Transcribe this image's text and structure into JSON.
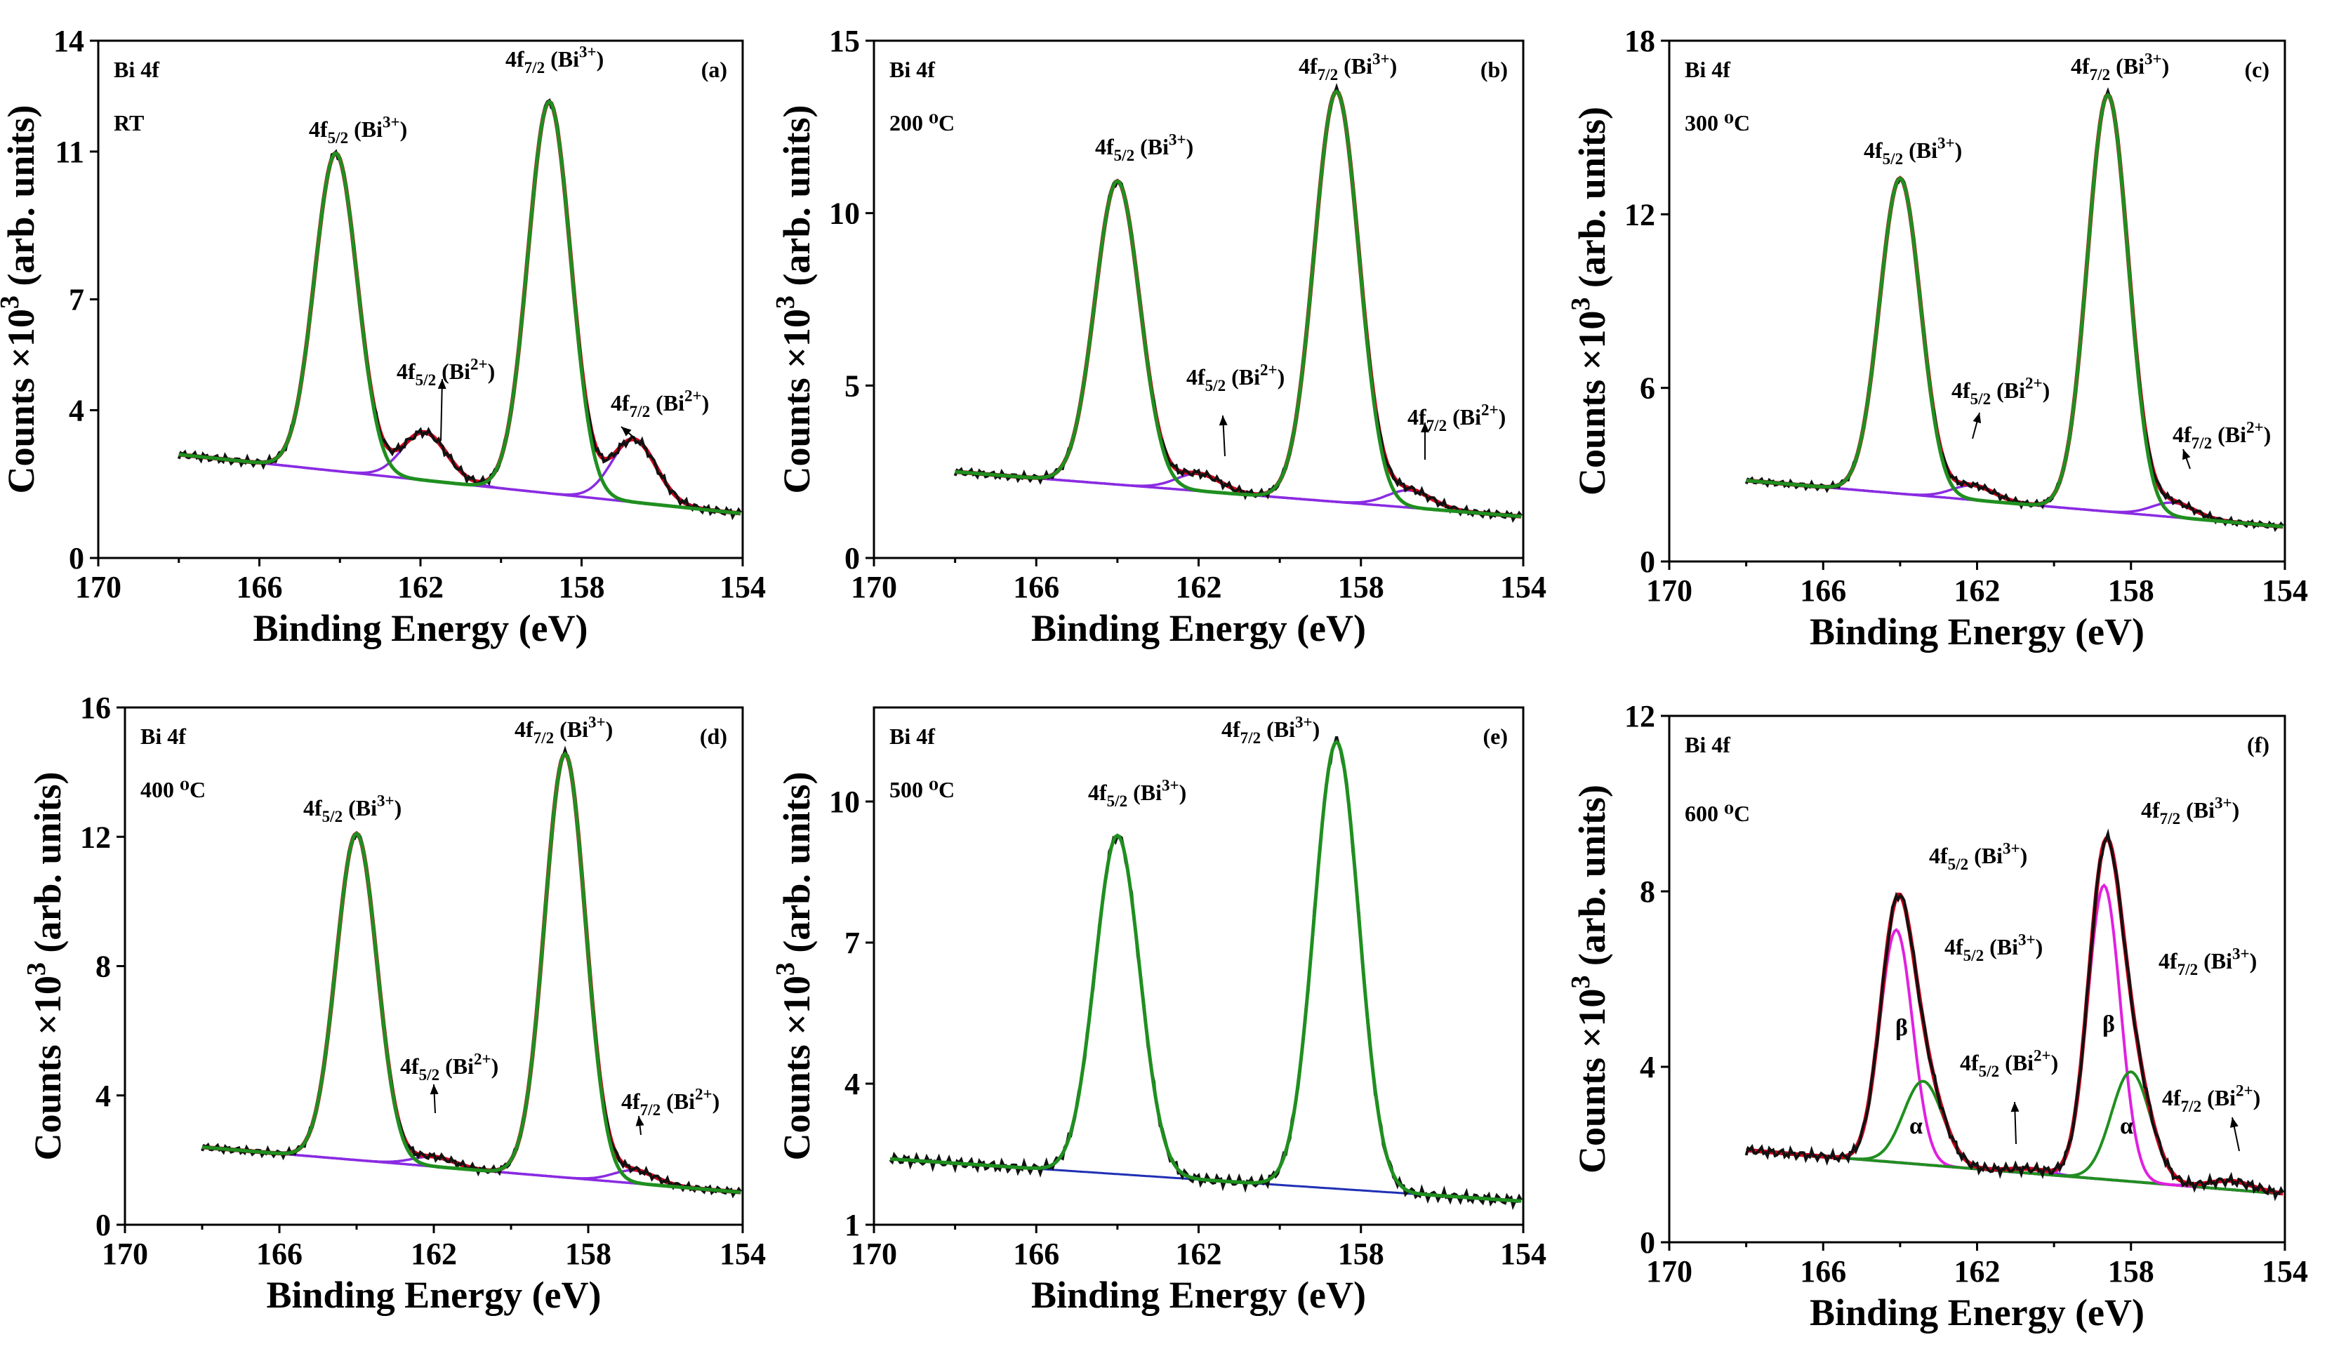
{
  "colors": {
    "exp": "#111111",
    "fit_envelope": "#d0021b",
    "bi3_component": "#1f8f1f",
    "bi2_component": "#8a2be2",
    "baseline": "#1f2fb5",
    "beta_component": "#e020e0",
    "alpha_component": "#1f8f1f"
  },
  "chart_data": [
    {
      "id": "a",
      "panel_label": "(a)",
      "type": "line",
      "element": "Bi 4f",
      "condition": "RT",
      "xlabel": "Binding Energy (eV)",
      "ylabel": "Counts ×10",
      "ylabel_sup": "3",
      "ylabel_suffix": " (arb. units)",
      "xlim": [
        170,
        154
      ],
      "xticks": [
        "170",
        "166",
        "162",
        "158",
        "154"
      ],
      "ylim": [
        0,
        14
      ],
      "yticks": [
        "0",
        "4",
        "7",
        "11",
        "14"
      ],
      "baseline": {
        "left": 2.8,
        "right": 1.2,
        "start": 168
      },
      "peaks": [
        {
          "center": 164.1,
          "height": 8.6,
          "fwhm": 1.25,
          "kind": "bi3"
        },
        {
          "center": 158.8,
          "height": 10.6,
          "fwhm": 1.25,
          "kind": "bi3"
        },
        {
          "center": 161.9,
          "height": 1.3,
          "fwhm": 1.3,
          "kind": "bi2"
        },
        {
          "center": 156.7,
          "height": 1.7,
          "fwhm": 1.3,
          "kind": "bi2"
        }
      ],
      "annotations": [
        {
          "base": "4f",
          "sub": "5/2",
          "rest": " (Bi",
          "sup": "3+",
          "close": ")"
        },
        {
          "base": "4f",
          "sub": "7/2",
          "rest": " (Bi",
          "sup": "3+",
          "close": ")"
        },
        {
          "base": "4f",
          "sub": "5/2",
          "rest": " (Bi",
          "sup": "2+",
          "close": ")"
        },
        {
          "base": "4f",
          "sub": "7/2",
          "rest": " (Bi",
          "sup": "2+",
          "close": ")"
        }
      ]
    },
    {
      "id": "b",
      "panel_label": "(b)",
      "type": "line",
      "element": "Bi 4f",
      "condition": "200 ⁰C",
      "xlabel": "Binding Energy (eV)",
      "ylabel": "Counts ×10",
      "ylabel_sup": "3",
      "ylabel_suffix": " (arb. units)",
      "xlim": [
        170,
        154
      ],
      "xticks": [
        "170",
        "166",
        "162",
        "158",
        "154"
      ],
      "ylim": [
        0,
        15
      ],
      "yticks": [
        "0",
        "5",
        "10",
        "15"
      ],
      "baseline": {
        "left": 2.5,
        "right": 1.2,
        "start": 168
      },
      "peaks": [
        {
          "center": 164.0,
          "height": 8.8,
          "fwhm": 1.3,
          "kind": "bi3"
        },
        {
          "center": 158.6,
          "height": 11.9,
          "fwhm": 1.3,
          "kind": "bi3"
        },
        {
          "center": 162.0,
          "height": 0.5,
          "fwhm": 1.3,
          "kind": "bi2"
        },
        {
          "center": 156.8,
          "height": 0.5,
          "fwhm": 1.3,
          "kind": "bi2"
        }
      ],
      "annotations": [
        {
          "base": "4f",
          "sub": "5/2",
          "rest": " (Bi",
          "sup": "3+",
          "close": ")"
        },
        {
          "base": "4f",
          "sub": "7/2",
          "rest": " (Bi",
          "sup": "3+",
          "close": ")"
        },
        {
          "base": "4f",
          "sub": "5/2",
          "rest": " (Bi",
          "sup": "2+",
          "close": ")"
        },
        {
          "base": "4f",
          "sub": "7/2",
          "rest": " (Bi",
          "sup": "2+",
          "close": ")"
        }
      ]
    },
    {
      "id": "c",
      "panel_label": "(c)",
      "type": "line",
      "element": "Bi 4f",
      "condition": "300 ⁰C",
      "xlabel": "Binding Energy (eV)",
      "ylabel": "Counts ×10",
      "ylabel_sup": "3",
      "ylabel_suffix": " (arb. units)",
      "xlim": [
        170,
        154
      ],
      "xticks": [
        "170",
        "166",
        "162",
        "158",
        "154"
      ],
      "ylim": [
        0,
        18
      ],
      "yticks": [
        "0",
        "6",
        "12",
        "18"
      ],
      "baseline": {
        "left": 2.8,
        "right": 1.2,
        "start": 168
      },
      "peaks": [
        {
          "center": 164.0,
          "height": 10.9,
          "fwhm": 1.25,
          "kind": "bi3"
        },
        {
          "center": 158.6,
          "height": 14.4,
          "fwhm": 1.25,
          "kind": "bi3"
        },
        {
          "center": 162.1,
          "height": 0.5,
          "fwhm": 1.3,
          "kind": "bi2"
        },
        {
          "center": 156.9,
          "height": 0.5,
          "fwhm": 1.3,
          "kind": "bi2"
        }
      ],
      "annotations": [
        {
          "base": "4f",
          "sub": "5/2",
          "rest": " (Bi",
          "sup": "3+",
          "close": ")"
        },
        {
          "base": "4f",
          "sub": "7/2",
          "rest": " (Bi",
          "sup": "3+",
          "close": ")"
        },
        {
          "base": "4f",
          "sub": "5/2",
          "rest": " (Bi",
          "sup": "2+",
          "close": ")"
        },
        {
          "base": "4f",
          "sub": "7/2",
          "rest": " (Bi",
          "sup": "2+",
          "close": ")"
        }
      ]
    },
    {
      "id": "d",
      "panel_label": "(d)",
      "type": "line",
      "element": "Bi 4f",
      "condition": "400 ⁰C",
      "xlabel": "Binding Energy (eV)",
      "ylabel": "Counts ×10",
      "ylabel_sup": "3",
      "ylabel_suffix": " (arb. units)",
      "xlim": [
        170,
        154
      ],
      "xticks": [
        "170",
        "166",
        "162",
        "158",
        "154"
      ],
      "ylim": [
        0,
        16
      ],
      "yticks": [
        "0",
        "4",
        "8",
        "12",
        "16"
      ],
      "baseline": {
        "left": 2.4,
        "right": 1.0,
        "start": 168
      },
      "peaks": [
        {
          "center": 164.0,
          "height": 10.1,
          "fwhm": 1.25,
          "kind": "bi3"
        },
        {
          "center": 158.6,
          "height": 13.1,
          "fwhm": 1.25,
          "kind": "bi3"
        },
        {
          "center": 162.0,
          "height": 0.3,
          "fwhm": 1.3,
          "kind": "bi2"
        },
        {
          "center": 156.8,
          "height": 0.4,
          "fwhm": 1.3,
          "kind": "bi2"
        }
      ],
      "annotations": [
        {
          "base": "4f",
          "sub": "5/2",
          "rest": " (Bi",
          "sup": "3+",
          "close": ")"
        },
        {
          "base": "4f",
          "sub": "7/2",
          "rest": " (Bi",
          "sup": "3+",
          "close": ")"
        },
        {
          "base": "4f",
          "sub": "5/2",
          "rest": " (Bi",
          "sup": "2+",
          "close": ")"
        },
        {
          "base": "4f",
          "sub": "7/2",
          "rest": " (Bi",
          "sup": "2+",
          "close": ")"
        }
      ]
    },
    {
      "id": "e",
      "panel_label": "(e)",
      "type": "line",
      "element": "Bi 4f",
      "condition": "500 ⁰C",
      "xlabel": "Binding Energy (eV)",
      "ylabel": "Counts ×10",
      "ylabel_sup": "3",
      "ylabel_suffix": " (arb. units)",
      "xlim": [
        170,
        154
      ],
      "xticks": [
        "170",
        "166",
        "162",
        "158",
        "154"
      ],
      "ylim": [
        1,
        12
      ],
      "yticks": [
        "1",
        "4",
        "7",
        "10"
      ],
      "baseline": {
        "left": 2.4,
        "right": 1.5,
        "start": 169.6
      },
      "peaks": [
        {
          "center": 164.0,
          "height": 7.2,
          "fwhm": 1.3,
          "kind": "bi3"
        },
        {
          "center": 158.6,
          "height": 9.5,
          "fwhm": 1.3,
          "kind": "bi3"
        }
      ],
      "annotations": [
        {
          "base": "4f",
          "sub": "5/2",
          "rest": " (Bi",
          "sup": "3+",
          "close": ")"
        },
        {
          "base": "4f",
          "sub": "7/2",
          "rest": " (Bi",
          "sup": "3+",
          "close": ")"
        }
      ]
    },
    {
      "id": "f",
      "panel_label": "(f)",
      "type": "line",
      "element": "Bi 4f",
      "condition": "600 ⁰C",
      "xlabel": "Binding Energy (eV)",
      "ylabel": "Counts ×10",
      "ylabel_sup": "3",
      "ylabel_suffix": " (arb. units)",
      "xlim": [
        170,
        154
      ],
      "xticks": [
        "170",
        "166",
        "162",
        "158",
        "154"
      ],
      "ylim": [
        0,
        12
      ],
      "yticks": [
        "0",
        "4",
        "8",
        "12"
      ],
      "baseline": {
        "left": 2.1,
        "right": 1.1,
        "start": 168
      },
      "peaks": [
        {
          "center": 164.1,
          "height": 5.3,
          "fwhm": 1.0,
          "kind": "beta"
        },
        {
          "center": 163.4,
          "height": 1.9,
          "fwhm": 1.2,
          "kind": "alpha"
        },
        {
          "center": 158.7,
          "height": 6.7,
          "fwhm": 1.0,
          "kind": "beta"
        },
        {
          "center": 158.0,
          "height": 2.5,
          "fwhm": 1.2,
          "kind": "alpha"
        },
        {
          "center": 160.6,
          "height": 0.1,
          "fwhm": 1.3,
          "kind": "bi2"
        },
        {
          "center": 155.4,
          "height": 0.2,
          "fwhm": 1.3,
          "kind": "bi2"
        }
      ],
      "annotations": [
        {
          "base": "4f",
          "sub": "5/2",
          "rest": " (Bi",
          "sup": "3+",
          "close": ")"
        },
        {
          "base": "4f",
          "sub": "7/2",
          "rest": " (Bi",
          "sup": "3+",
          "close": ")"
        },
        {
          "base": "4f",
          "sub": "5/2",
          "rest": " (Bi",
          "sup": "3+",
          "close": ")"
        },
        {
          "base": "4f",
          "sub": "7/2",
          "rest": " (Bi",
          "sup": "3+",
          "close": ")"
        },
        {
          "base": "4f",
          "sub": "5/2",
          "rest": " (Bi",
          "sup": "2+",
          "close": ")"
        },
        {
          "base": "4f",
          "sub": "7/2",
          "rest": " (Bi",
          "sup": "2+",
          "close": ")"
        }
      ],
      "component_labels": [
        "β",
        "α",
        "β",
        "α"
      ]
    }
  ]
}
